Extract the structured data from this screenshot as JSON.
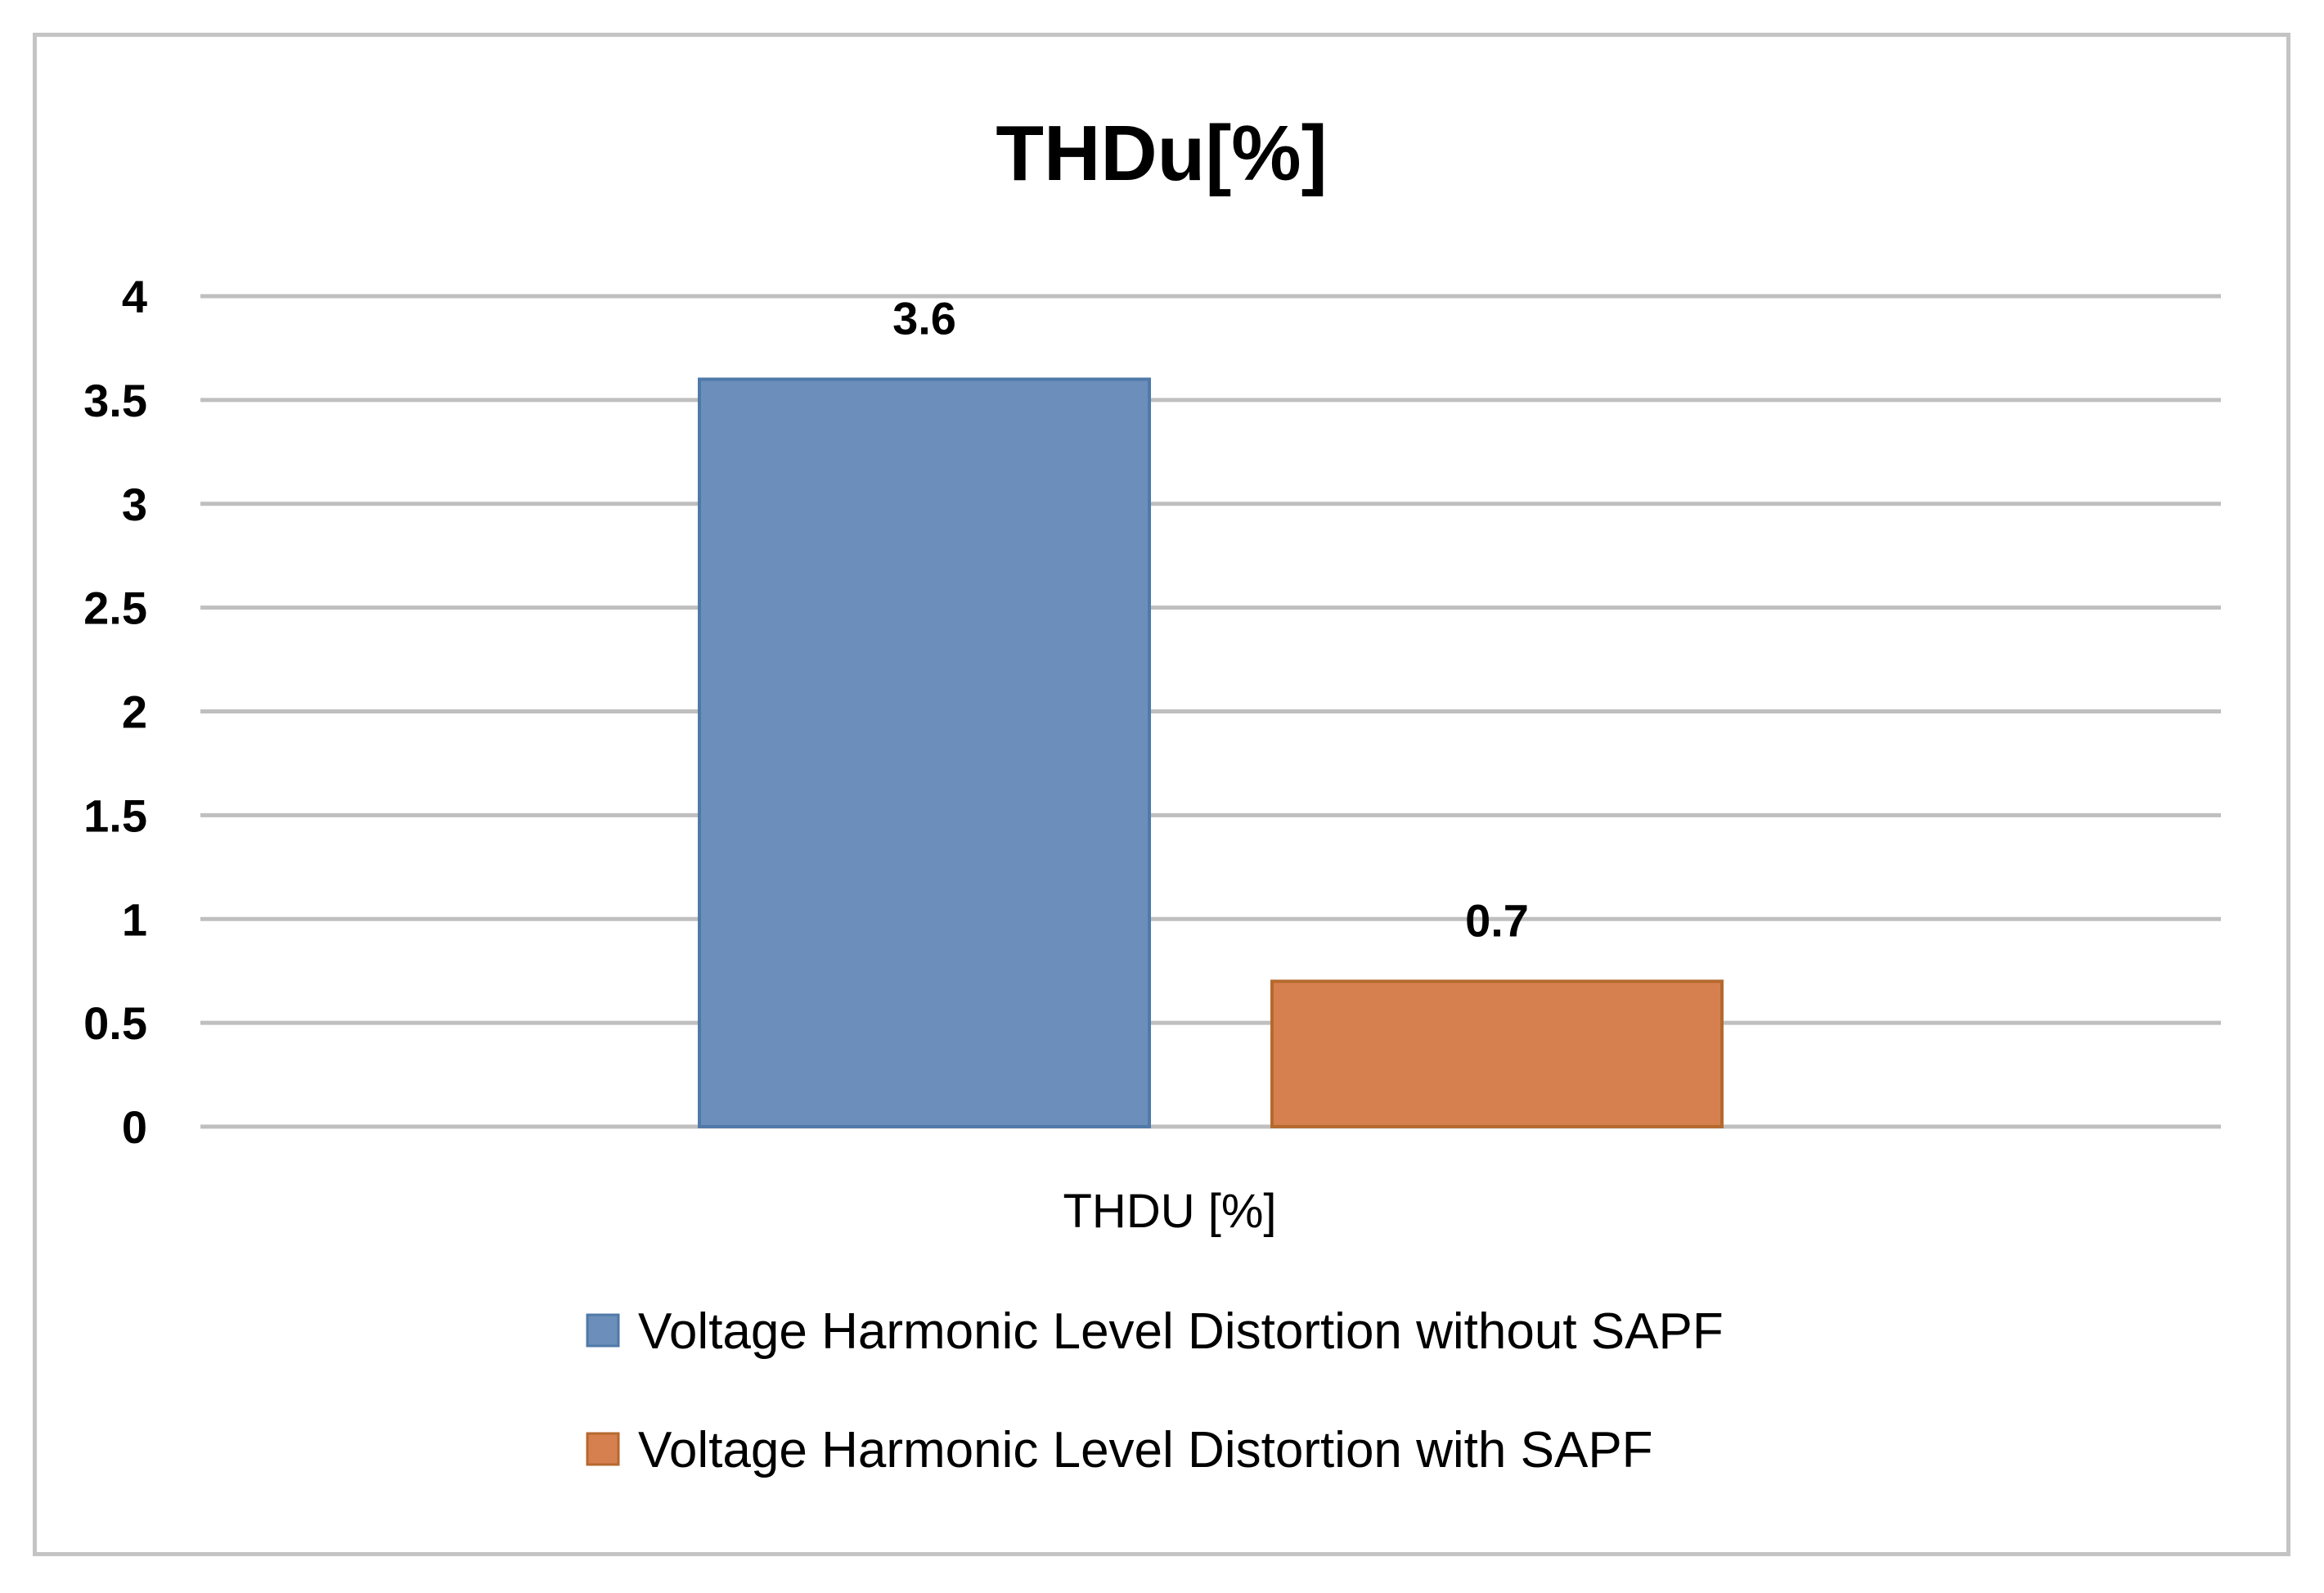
{
  "chart_data": {
    "type": "bar",
    "title": "THDu[%]",
    "categories": [
      "THDU [%]"
    ],
    "series": [
      {
        "name": "Voltage Harmonic Level Distortion without SAPF",
        "values": [
          3.6
        ],
        "color": "#6b8fba",
        "border": "#4f79a8"
      },
      {
        "name": "Voltage Harmonic Level Distortion with SAPF",
        "values": [
          0.7
        ],
        "color": "#d6804f",
        "border": "#b5692f"
      }
    ],
    "data_labels": [
      "3.6",
      "0.7"
    ],
    "xlabel": "",
    "ylabel": "",
    "ylim": [
      0,
      4
    ],
    "yticks": [
      "0",
      "0.5",
      "1",
      "1.5",
      "2",
      "2.5",
      "3",
      "3.5",
      "4"
    ],
    "grid": true,
    "gridline_color": "#bfbfbf",
    "legend_position": "bottom"
  }
}
